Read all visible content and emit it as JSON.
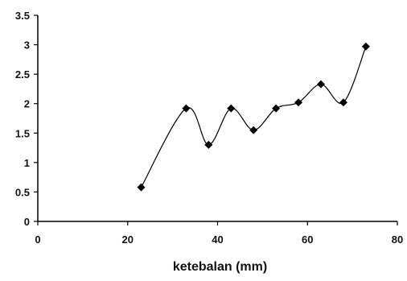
{
  "chart_data": {
    "type": "line",
    "title": "",
    "xlabel": "ketebalan (mm)",
    "ylabel": "",
    "xlim": [
      0,
      80
    ],
    "ylim": [
      0,
      3.5
    ],
    "x_ticks": [
      "0",
      "20",
      "40",
      "60",
      "80"
    ],
    "y_ticks": [
      "0",
      "0.5",
      "1",
      "1.5",
      "2",
      "2.5",
      "3",
      "3.5"
    ],
    "grid": false,
    "legend": "none",
    "smooth": true,
    "marker": "diamond",
    "line_color": "#000000",
    "series": [
      {
        "x": [
          23,
          33,
          38,
          43,
          48,
          53,
          58,
          63,
          68,
          73
        ],
        "y": [
          0.58,
          1.92,
          1.3,
          1.92,
          1.55,
          1.92,
          2.02,
          2.33,
          2.02,
          2.97
        ]
      }
    ]
  }
}
